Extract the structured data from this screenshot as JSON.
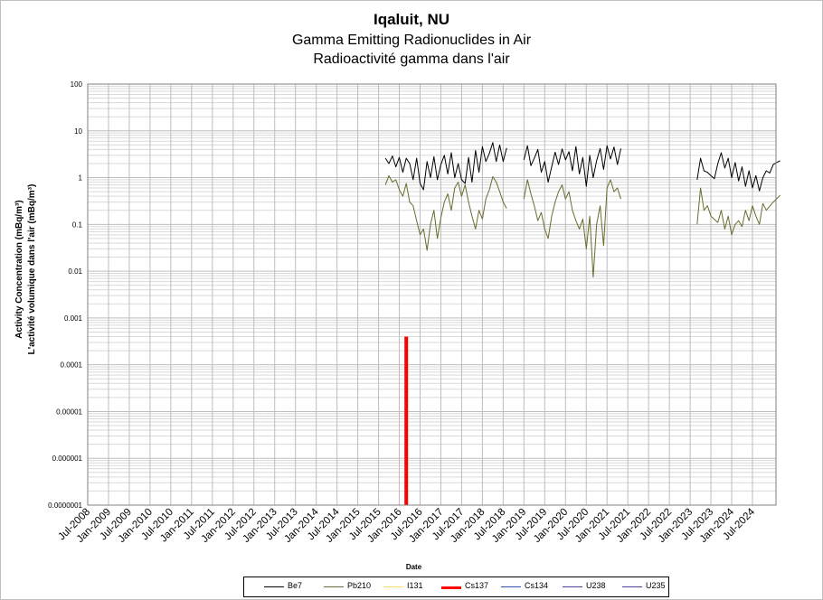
{
  "header": {
    "title": "Iqaluit, NU",
    "subtitle_en": "Gamma Emitting Radionuclides in Air",
    "subtitle_fr": "Radioactivité gamma dans l'air"
  },
  "chart_data": {
    "type": "line",
    "title": "Iqaluit, NU",
    "subtitle": [
      "Gamma Emitting Radionuclides in Air",
      "Radioactivité gamma dans l'air"
    ],
    "xlabel": "Date",
    "ylabel": [
      "Activity Concentration  (mBq/m³)",
      "L'activité volumique dans l'air (mBq/m³)"
    ],
    "yscale": "log",
    "ylim": [
      1e-07,
      100
    ],
    "y_ticks": [
      100,
      10,
      1,
      0.1,
      0.01,
      0.001,
      0.0001,
      1e-05,
      1e-06,
      1e-07
    ],
    "y_tick_labels": [
      "100",
      "10",
      "1",
      "0.1",
      "0.01",
      "0.001",
      "0.0001",
      "0.00001",
      "0.000001",
      "0.0000001"
    ],
    "xlim": [
      "2008-07",
      "2024-07"
    ],
    "x_tick_labels": [
      "Jul-2008",
      "Jan-2009",
      "Jul-2009",
      "Jan-2010",
      "Jul-2010",
      "Jan-2011",
      "Jul-2011",
      "Jan-2012",
      "Jul-2012",
      "Jan-2013",
      "Jul-2013",
      "Jan-2014",
      "Jul-2014",
      "Jan-2015",
      "Jul-2015",
      "Jan-2016",
      "Jul-2016",
      "Jan-2017",
      "Jul-2017",
      "Jan-2018",
      "Jul-2018",
      "Jan-2019",
      "Jul-2019",
      "Jan-2020",
      "Jul-2020",
      "Jan-2021",
      "Jul-2021",
      "Jan-2022",
      "Jul-2022",
      "Jan-2023",
      "Jul-2023",
      "Jan-2024",
      "Jul-2024"
    ],
    "grid": true,
    "legend_position": "bottom",
    "series": [
      {
        "name": "Be7",
        "color": "#000000",
        "points": [
          [
            "2015-09",
            2.6
          ],
          [
            "2015-10",
            2.0
          ],
          [
            "2015-11",
            2.9
          ],
          [
            "2015-12",
            1.7
          ],
          [
            "2016-01",
            2.7
          ],
          [
            "2016-02",
            1.3
          ],
          [
            "2016-03",
            2.6
          ],
          [
            "2016-04",
            2.0
          ],
          [
            "2016-05",
            0.9
          ],
          [
            "2016-06",
            2.6
          ],
          [
            "2016-07",
            0.75
          ],
          [
            "2016-08",
            0.55
          ],
          [
            "2016-09",
            2.2
          ],
          [
            "2016-10",
            1.0
          ],
          [
            "2016-11",
            2.8
          ],
          [
            "2016-12",
            0.9
          ],
          [
            "2017-01",
            1.9
          ],
          [
            "2017-02",
            3.0
          ],
          [
            "2017-03",
            1.2
          ],
          [
            "2017-04",
            3.4
          ],
          [
            "2017-05",
            1.0
          ],
          [
            "2017-06",
            2.0
          ],
          [
            "2017-07",
            0.9
          ],
          [
            "2017-08",
            0.75
          ],
          [
            "2017-09",
            2.7
          ],
          [
            "2017-10",
            0.8
          ],
          [
            "2017-11",
            3.8
          ],
          [
            "2017-12",
            1.3
          ],
          [
            "2018-01",
            4.6
          ],
          [
            "2018-02",
            2.2
          ],
          [
            "2018-03",
            3.3
          ],
          [
            "2018-04",
            5.6
          ],
          [
            "2018-05",
            2.2
          ],
          [
            "2018-06",
            5.0
          ],
          [
            "2018-07",
            2.2
          ],
          [
            "2018-08",
            4.3
          ],
          null,
          [
            "2019-01",
            2.4
          ],
          [
            "2019-02",
            4.8
          ],
          [
            "2019-03",
            1.8
          ],
          [
            "2019-04",
            2.6
          ],
          [
            "2019-05",
            4.0
          ],
          [
            "2019-06",
            1.3
          ],
          [
            "2019-07",
            2.2
          ],
          [
            "2019-08",
            0.8
          ],
          [
            "2019-09",
            1.7
          ],
          [
            "2019-10",
            3.5
          ],
          [
            "2019-11",
            1.9
          ],
          [
            "2019-12",
            4.1
          ],
          [
            "2020-01",
            2.4
          ],
          [
            "2020-02",
            3.6
          ],
          [
            "2020-03",
            1.4
          ],
          [
            "2020-04",
            4.6
          ],
          [
            "2020-05",
            1.2
          ],
          [
            "2020-06",
            2.7
          ],
          [
            "2020-07",
            0.65
          ],
          [
            "2020-08",
            3.0
          ],
          [
            "2020-09",
            1.0
          ],
          [
            "2020-10",
            2.3
          ],
          [
            "2020-11",
            4.2
          ],
          [
            "2020-12",
            1.5
          ],
          [
            "2021-01",
            4.8
          ],
          [
            "2021-02",
            2.5
          ],
          [
            "2021-03",
            4.5
          ],
          [
            "2021-04",
            1.9
          ],
          [
            "2021-05",
            4.2
          ],
          null,
          [
            "2023-03",
            0.9
          ],
          [
            "2023-04",
            2.6
          ],
          [
            "2023-05",
            1.4
          ],
          [
            "2023-06",
            1.3
          ],
          [
            "2023-07",
            1.1
          ],
          [
            "2023-08",
            0.95
          ],
          [
            "2023-09",
            2.0
          ],
          [
            "2023-10",
            3.4
          ],
          [
            "2023-11",
            1.6
          ],
          [
            "2023-12",
            2.6
          ],
          [
            "2024-01",
            1.0
          ],
          [
            "2024-02",
            2.1
          ],
          [
            "2024-03",
            0.85
          ],
          [
            "2024-04",
            1.7
          ],
          [
            "2024-05",
            0.65
          ],
          [
            "2024-06",
            1.4
          ],
          [
            "2024-07",
            0.6
          ],
          [
            "2024-08",
            1.1
          ],
          [
            "2024-09",
            0.52
          ],
          [
            "2024-10",
            1.0
          ],
          [
            "2024-11",
            1.4
          ],
          [
            "2024-12",
            1.25
          ],
          [
            "2025-01",
            1.9
          ],
          [
            "2025-03",
            2.3
          ]
        ]
      },
      {
        "name": "Pb210",
        "color": "#6b6b2e",
        "points": [
          [
            "2015-09",
            0.7
          ],
          [
            "2015-10",
            1.1
          ],
          [
            "2015-11",
            0.8
          ],
          [
            "2015-12",
            0.9
          ],
          [
            "2016-01",
            0.55
          ],
          [
            "2016-02",
            0.4
          ],
          [
            "2016-03",
            0.75
          ],
          [
            "2016-04",
            0.3
          ],
          [
            "2016-05",
            0.25
          ],
          [
            "2016-06",
            0.12
          ],
          [
            "2016-07",
            0.06
          ],
          [
            "2016-08",
            0.08
          ],
          [
            "2016-09",
            0.028
          ],
          [
            "2016-10",
            0.1
          ],
          [
            "2016-11",
            0.2
          ],
          [
            "2016-12",
            0.05
          ],
          [
            "2017-01",
            0.14
          ],
          [
            "2017-02",
            0.3
          ],
          [
            "2017-03",
            0.45
          ],
          [
            "2017-04",
            0.2
          ],
          [
            "2017-05",
            0.6
          ],
          [
            "2017-06",
            0.8
          ],
          [
            "2017-07",
            0.4
          ],
          [
            "2017-08",
            0.7
          ],
          [
            "2017-09",
            0.3
          ],
          [
            "2017-10",
            0.15
          ],
          [
            "2017-11",
            0.08
          ],
          [
            "2017-12",
            0.2
          ],
          [
            "2018-01",
            0.13
          ],
          [
            "2018-02",
            0.35
          ],
          [
            "2018-03",
            0.55
          ],
          [
            "2018-04",
            1.05
          ],
          [
            "2018-05",
            0.8
          ],
          [
            "2018-06",
            0.5
          ],
          [
            "2018-07",
            0.3
          ],
          [
            "2018-08",
            0.22
          ],
          null,
          [
            "2019-01",
            0.35
          ],
          [
            "2019-02",
            0.9
          ],
          [
            "2019-03",
            0.45
          ],
          [
            "2019-04",
            0.25
          ],
          [
            "2019-05",
            0.12
          ],
          [
            "2019-06",
            0.18
          ],
          [
            "2019-07",
            0.08
          ],
          [
            "2019-08",
            0.05
          ],
          [
            "2019-09",
            0.15
          ],
          [
            "2019-10",
            0.3
          ],
          [
            "2019-11",
            0.5
          ],
          [
            "2019-12",
            0.7
          ],
          [
            "2020-01",
            0.35
          ],
          [
            "2020-02",
            0.5
          ],
          [
            "2020-03",
            0.2
          ],
          [
            "2020-04",
            0.12
          ],
          [
            "2020-05",
            0.08
          ],
          [
            "2020-06",
            0.13
          ],
          [
            "2020-07",
            0.03
          ],
          [
            "2020-08",
            0.15
          ],
          [
            "2020-09",
            0.0075
          ],
          [
            "2020-10",
            0.1
          ],
          [
            "2020-11",
            0.25
          ],
          [
            "2020-12",
            0.035
          ],
          [
            "2021-01",
            0.6
          ],
          [
            "2021-02",
            0.9
          ],
          [
            "2021-03",
            0.5
          ],
          [
            "2021-04",
            0.6
          ],
          [
            "2021-05",
            0.35
          ],
          null,
          [
            "2023-03",
            0.1
          ],
          [
            "2023-04",
            0.6
          ],
          [
            "2023-05",
            0.2
          ],
          [
            "2023-06",
            0.25
          ],
          [
            "2023-07",
            0.15
          ],
          [
            "2023-09",
            0.11
          ],
          [
            "2023-10",
            0.2
          ],
          [
            "2023-11",
            0.08
          ],
          [
            "2023-12",
            0.15
          ],
          [
            "2024-01",
            0.06
          ],
          [
            "2024-02",
            0.1
          ],
          [
            "2024-03",
            0.12
          ],
          [
            "2024-04",
            0.09
          ],
          [
            "2024-05",
            0.2
          ],
          [
            "2024-06",
            0.12
          ],
          [
            "2024-07",
            0.25
          ],
          [
            "2024-08",
            0.15
          ],
          [
            "2024-09",
            0.1
          ],
          [
            "2024-10",
            0.28
          ],
          [
            "2024-11",
            0.2
          ],
          [
            "2025-01",
            0.3
          ],
          [
            "2025-03",
            0.42
          ]
        ]
      },
      {
        "name": "I131",
        "color": "#ffd966",
        "points": []
      },
      {
        "name": "Cs137",
        "color": "#ff0000",
        "points": [
          [
            "2016-03",
            1e-07
          ],
          [
            "2016-03",
            0.0004
          ]
        ]
      },
      {
        "name": "Cs134",
        "color": "#2f4fb5",
        "points": []
      },
      {
        "name": "U238",
        "color": "#4a3f9a",
        "points": []
      },
      {
        "name": "U235",
        "color": "#4a3f9a",
        "points": []
      }
    ]
  }
}
